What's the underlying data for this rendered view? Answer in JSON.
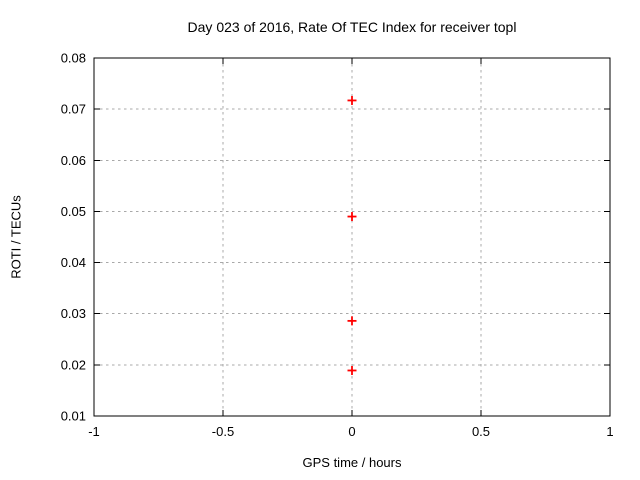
{
  "chart_data": {
    "type": "scatter",
    "title": "Day 023 of 2016, Rate Of TEC Index for receiver topl",
    "xlabel": "GPS time / hours",
    "ylabel": "ROTI / TECUs",
    "xlim": [
      -1,
      1
    ],
    "ylim": [
      0.01,
      0.08
    ],
    "xticks": [
      -1,
      -0.5,
      0,
      0.5,
      1
    ],
    "xtick_labels": [
      "-1",
      "-0.5",
      "0",
      "0.5",
      "1"
    ],
    "yticks": [
      0.01,
      0.02,
      0.03,
      0.04,
      0.05,
      0.06,
      0.07,
      0.08
    ],
    "ytick_labels": [
      "0.01",
      "0.02",
      "0.03",
      "0.04",
      "0.05",
      "0.06",
      "0.07",
      "0.08"
    ],
    "grid": true,
    "legend": "none",
    "marker": {
      "shape": "plus",
      "color": "#ff0000",
      "size": 9,
      "stroke_width": 1.8
    },
    "series": [
      {
        "name": "ROTI",
        "points": [
          {
            "x": 0,
            "y": 0.0717
          },
          {
            "x": 0,
            "y": 0.049
          },
          {
            "x": 0,
            "y": 0.0286
          },
          {
            "x": 0,
            "y": 0.0189
          }
        ]
      }
    ],
    "colors": {
      "background": "#ffffff",
      "axis": "#000000",
      "grid": "#a8a8a8",
      "text": "#000000"
    }
  }
}
